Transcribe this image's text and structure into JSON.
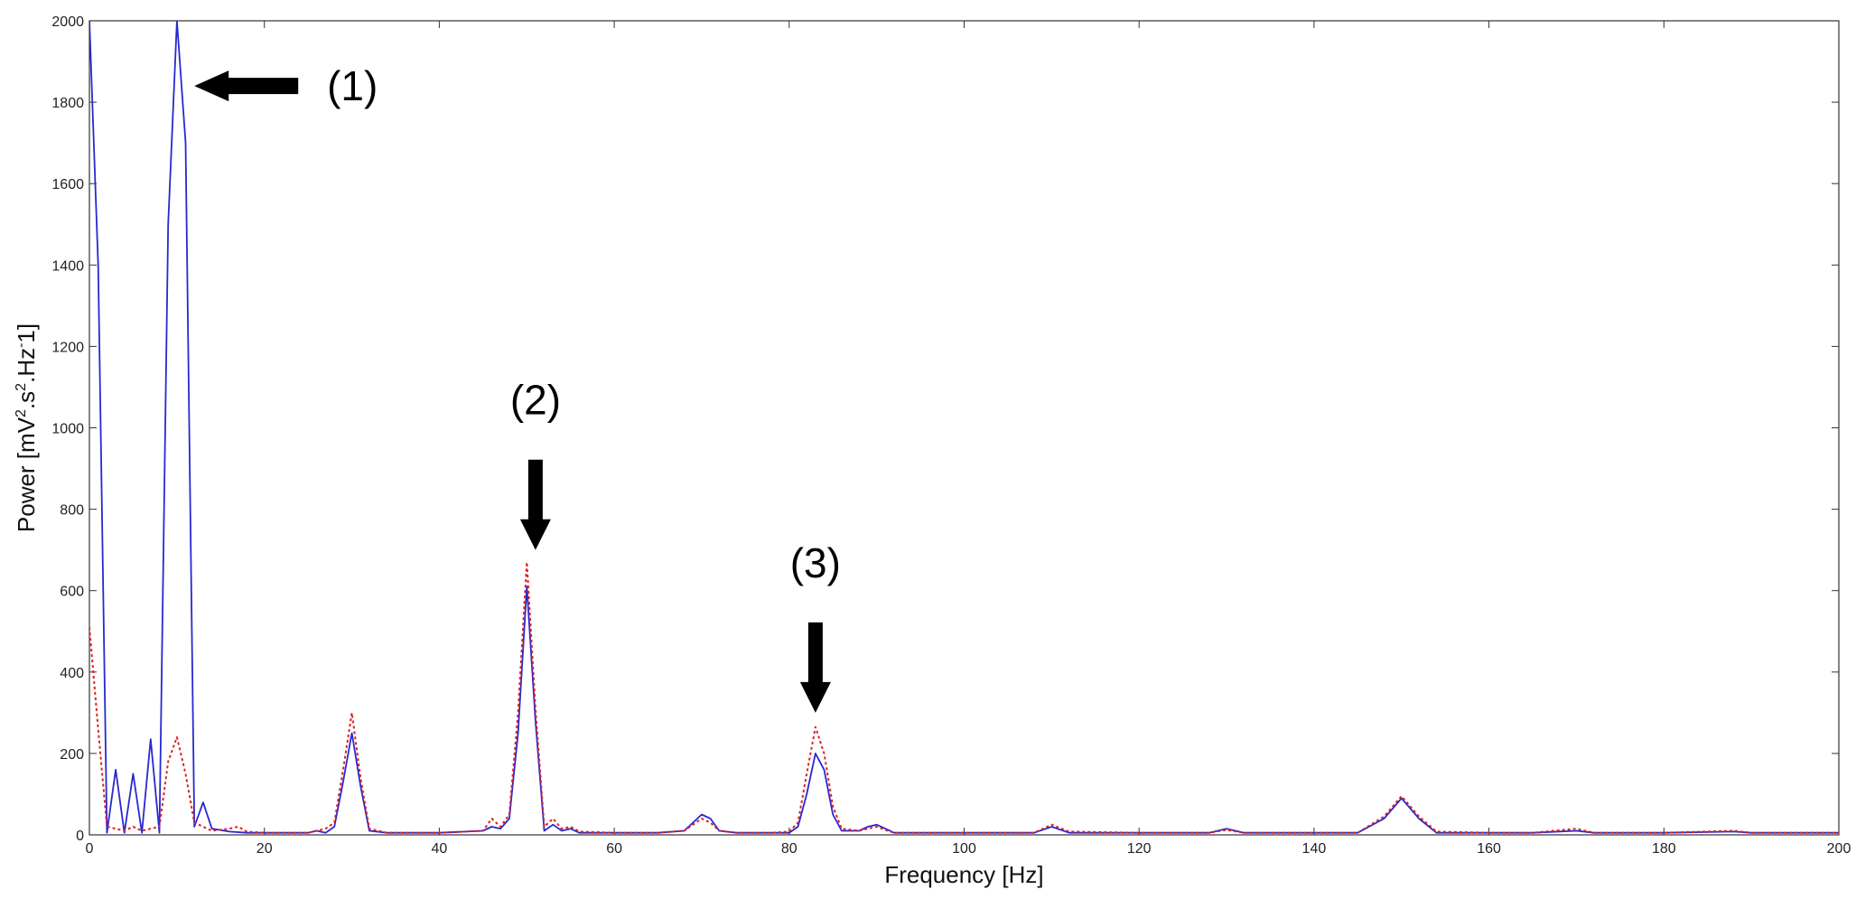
{
  "chart_data": {
    "type": "line",
    "xlabel": "Frequency [Hz]",
    "ylabel_parts": [
      "Power [mV",
      "2",
      ".s",
      "2",
      ".Hz",
      "-",
      "1]"
    ],
    "xlim": [
      0,
      200
    ],
    "ylim": [
      0,
      2000
    ],
    "xticks": [
      0,
      20,
      40,
      60,
      80,
      100,
      120,
      140,
      160,
      180,
      200
    ],
    "yticks": [
      0,
      200,
      400,
      600,
      800,
      1000,
      1200,
      1400,
      1600,
      1800,
      2000
    ],
    "grid": false,
    "series": [
      {
        "color": "#2828d2",
        "style": "solid",
        "points": [
          [
            0,
            2000
          ],
          [
            1,
            1400
          ],
          [
            2,
            5
          ],
          [
            3,
            160
          ],
          [
            4,
            5
          ],
          [
            5,
            150
          ],
          [
            6,
            5
          ],
          [
            7,
            235
          ],
          [
            8,
            5
          ],
          [
            9,
            1500
          ],
          [
            10,
            2000
          ],
          [
            11,
            1700
          ],
          [
            12,
            20
          ],
          [
            13,
            80
          ],
          [
            14,
            15
          ],
          [
            16,
            8
          ],
          [
            18,
            5
          ],
          [
            20,
            5
          ],
          [
            25,
            5
          ],
          [
            26,
            10
          ],
          [
            27,
            5
          ],
          [
            28,
            20
          ],
          [
            29,
            130
          ],
          [
            30,
            250
          ],
          [
            31,
            120
          ],
          [
            32,
            10
          ],
          [
            34,
            5
          ],
          [
            40,
            5
          ],
          [
            45,
            10
          ],
          [
            46,
            20
          ],
          [
            47,
            15
          ],
          [
            48,
            40
          ],
          [
            49,
            250
          ],
          [
            50,
            610
          ],
          [
            51,
            280
          ],
          [
            52,
            10
          ],
          [
            53,
            25
          ],
          [
            54,
            10
          ],
          [
            55,
            15
          ],
          [
            56,
            5
          ],
          [
            60,
            5
          ],
          [
            65,
            5
          ],
          [
            68,
            10
          ],
          [
            69,
            30
          ],
          [
            70,
            50
          ],
          [
            71,
            40
          ],
          [
            72,
            10
          ],
          [
            74,
            5
          ],
          [
            78,
            5
          ],
          [
            80,
            5
          ],
          [
            81,
            20
          ],
          [
            82,
            100
          ],
          [
            83,
            200
          ],
          [
            84,
            160
          ],
          [
            85,
            50
          ],
          [
            86,
            10
          ],
          [
            88,
            10
          ],
          [
            89,
            20
          ],
          [
            90,
            25
          ],
          [
            91,
            15
          ],
          [
            92,
            5
          ],
          [
            100,
            5
          ],
          [
            105,
            5
          ],
          [
            108,
            5
          ],
          [
            110,
            20
          ],
          [
            112,
            5
          ],
          [
            120,
            5
          ],
          [
            125,
            5
          ],
          [
            128,
            5
          ],
          [
            130,
            15
          ],
          [
            132,
            5
          ],
          [
            140,
            5
          ],
          [
            145,
            5
          ],
          [
            148,
            40
          ],
          [
            150,
            90
          ],
          [
            152,
            40
          ],
          [
            154,
            5
          ],
          [
            160,
            5
          ],
          [
            165,
            5
          ],
          [
            170,
            10
          ],
          [
            172,
            5
          ],
          [
            180,
            5
          ],
          [
            188,
            8
          ],
          [
            190,
            5
          ],
          [
            200,
            5
          ]
        ]
      },
      {
        "color": "#e02020",
        "style": "dotted",
        "points": [
          [
            0,
            510
          ],
          [
            1,
            260
          ],
          [
            2,
            20
          ],
          [
            3,
            15
          ],
          [
            4,
            10
          ],
          [
            5,
            20
          ],
          [
            6,
            10
          ],
          [
            7,
            15
          ],
          [
            8,
            20
          ],
          [
            9,
            180
          ],
          [
            10,
            240
          ],
          [
            11,
            150
          ],
          [
            12,
            30
          ],
          [
            13,
            20
          ],
          [
            14,
            10
          ],
          [
            16,
            15
          ],
          [
            17,
            20
          ],
          [
            18,
            8
          ],
          [
            20,
            5
          ],
          [
            25,
            5
          ],
          [
            27,
            15
          ],
          [
            28,
            30
          ],
          [
            29,
            160
          ],
          [
            30,
            300
          ],
          [
            31,
            140
          ],
          [
            32,
            15
          ],
          [
            34,
            5
          ],
          [
            40,
            5
          ],
          [
            45,
            10
          ],
          [
            46,
            40
          ],
          [
            47,
            20
          ],
          [
            48,
            50
          ],
          [
            49,
            300
          ],
          [
            50,
            670
          ],
          [
            51,
            310
          ],
          [
            52,
            20
          ],
          [
            53,
            40
          ],
          [
            54,
            15
          ],
          [
            55,
            20
          ],
          [
            56,
            8
          ],
          [
            60,
            5
          ],
          [
            65,
            5
          ],
          [
            68,
            10
          ],
          [
            69,
            25
          ],
          [
            70,
            40
          ],
          [
            71,
            30
          ],
          [
            72,
            10
          ],
          [
            74,
            5
          ],
          [
            78,
            5
          ],
          [
            80,
            8
          ],
          [
            81,
            30
          ],
          [
            82,
            150
          ],
          [
            83,
            265
          ],
          [
            84,
            200
          ],
          [
            85,
            70
          ],
          [
            86,
            15
          ],
          [
            88,
            10
          ],
          [
            89,
            15
          ],
          [
            90,
            20
          ],
          [
            91,
            12
          ],
          [
            92,
            5
          ],
          [
            100,
            5
          ],
          [
            105,
            5
          ],
          [
            108,
            5
          ],
          [
            110,
            25
          ],
          [
            112,
            8
          ],
          [
            120,
            5
          ],
          [
            125,
            5
          ],
          [
            128,
            5
          ],
          [
            130,
            12
          ],
          [
            132,
            5
          ],
          [
            140,
            5
          ],
          [
            145,
            5
          ],
          [
            148,
            45
          ],
          [
            150,
            95
          ],
          [
            152,
            45
          ],
          [
            154,
            8
          ],
          [
            160,
            5
          ],
          [
            165,
            5
          ],
          [
            170,
            15
          ],
          [
            172,
            5
          ],
          [
            180,
            5
          ],
          [
            188,
            10
          ],
          [
            190,
            5
          ],
          [
            200,
            5
          ]
        ]
      }
    ],
    "annotations": [
      {
        "text": "(1)",
        "arrow_direction": "left",
        "arrow_tip": [
          12,
          1840
        ]
      },
      {
        "text": "(2)",
        "arrow_direction": "down",
        "arrow_tip": [
          51,
          700
        ]
      },
      {
        "text": "(3)",
        "arrow_direction": "down",
        "arrow_tip": [
          83,
          300
        ]
      }
    ]
  }
}
